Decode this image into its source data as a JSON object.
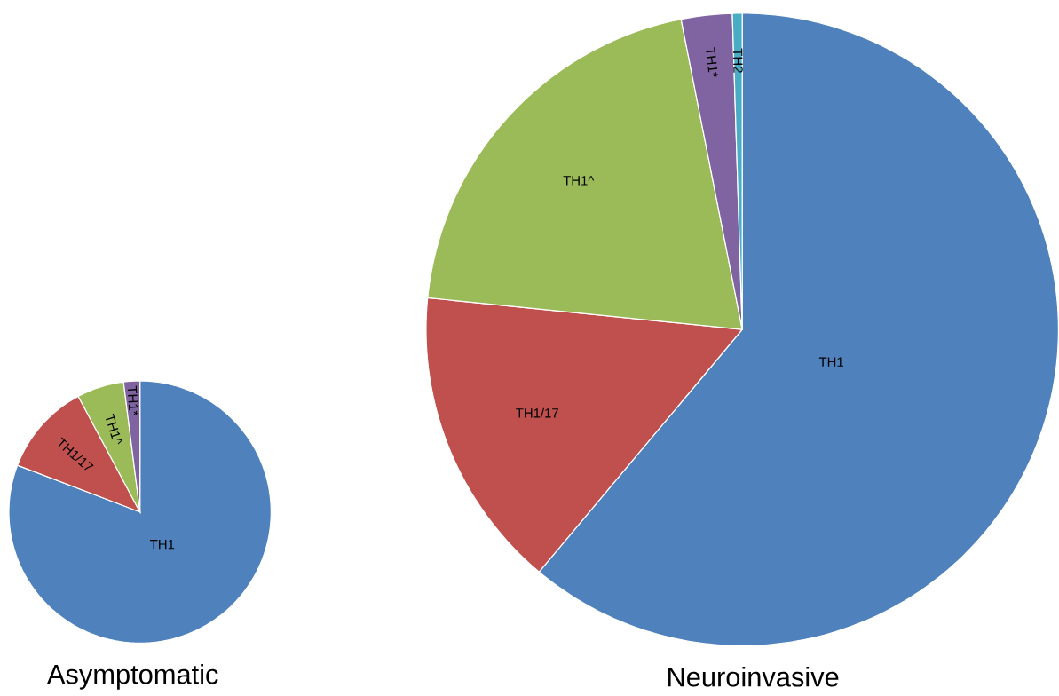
{
  "chart_data": [
    {
      "type": "pie",
      "title": "Asymptomatic",
      "categories": [
        "TH1",
        "TH1/17",
        "TH1^",
        "TH1*"
      ],
      "values": [
        80.8,
        11.4,
        5.8,
        2.0
      ],
      "colors": [
        "#4f81bd",
        "#c0504d",
        "#9bbb59",
        "#8064a2"
      ]
    },
    {
      "type": "pie",
      "title": "Neuroinvasive",
      "categories": [
        "TH1",
        "TH1/17",
        "TH1^",
        "TH1*",
        "TH2"
      ],
      "values": [
        61.1,
        15.5,
        20.3,
        2.6,
        0.5
      ],
      "colors": [
        "#4f81bd",
        "#c0504d",
        "#9bbb59",
        "#8064a2",
        "#4bacc6"
      ]
    }
  ]
}
